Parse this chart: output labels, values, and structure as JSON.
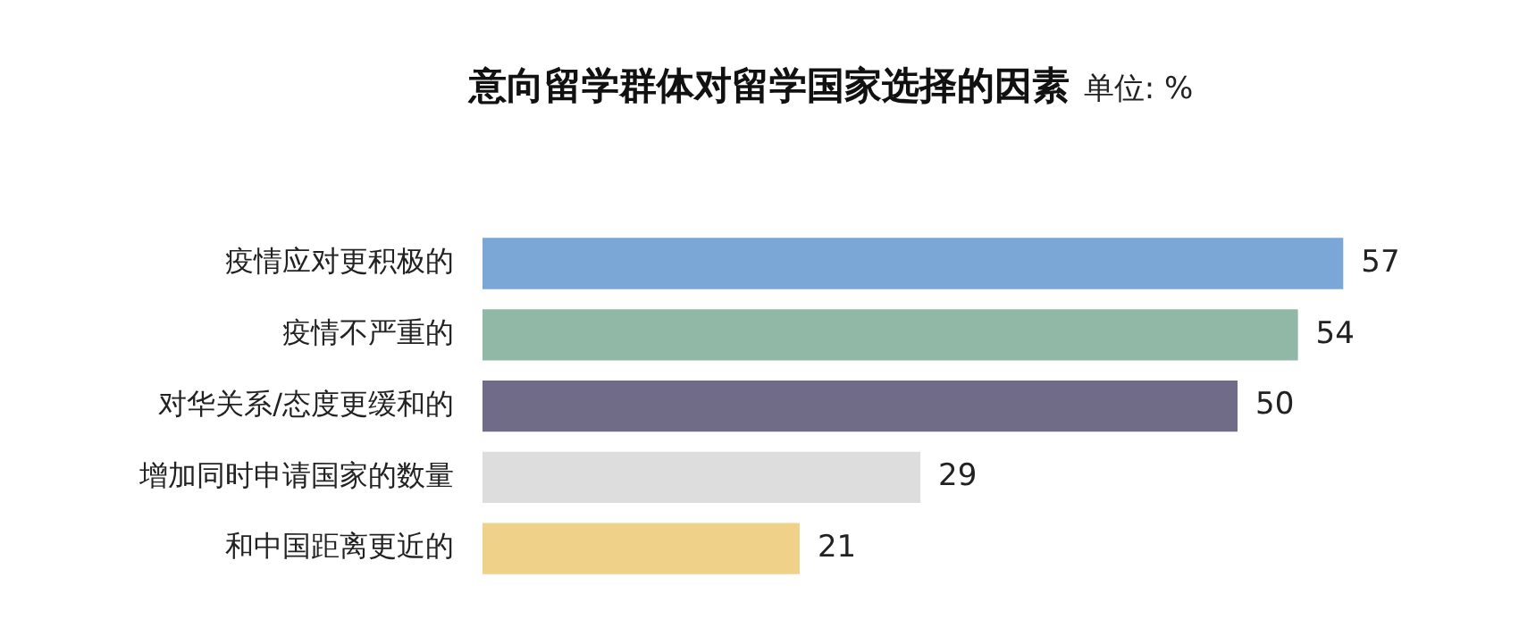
{
  "chart_data": {
    "type": "bar",
    "orientation": "horizontal",
    "title": "意向留学群体对留学国家选择的因素",
    "subtitle": "单位: %",
    "categories": [
      "疫情应对更积极的",
      "疫情不严重的",
      "对华关系/态度更缓和的",
      "增加同时申请国家的数量",
      "和中国距离更近的"
    ],
    "values": [
      57,
      54,
      50,
      29,
      21
    ],
    "colors": [
      "#7ba7d7",
      "#91b8a7",
      "#706c88",
      "#dcdddc",
      "#efd189"
    ],
    "data_labels": true,
    "grid": false,
    "legend": false,
    "tick_labels": "y"
  }
}
